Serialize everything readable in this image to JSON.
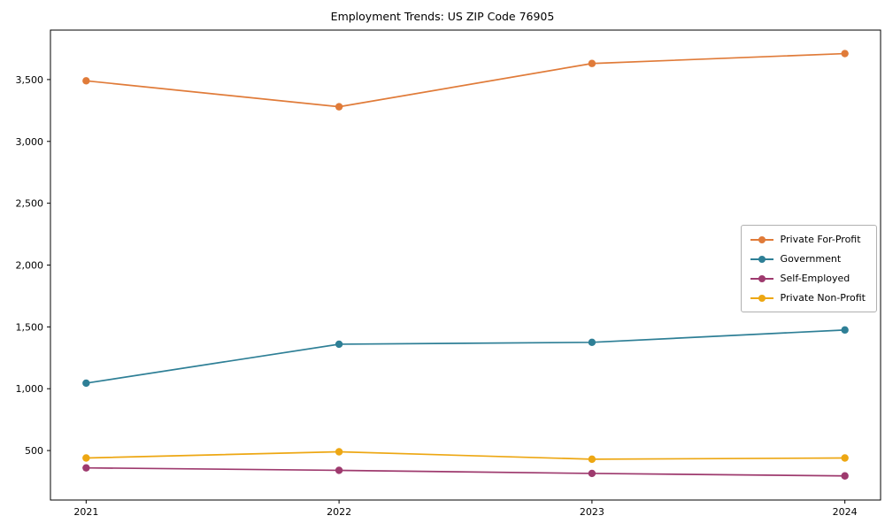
{
  "chart_data": {
    "type": "line",
    "title": "Employment Trends: US ZIP Code 76905",
    "categories": [
      "2021",
      "2022",
      "2023",
      "2024"
    ],
    "series": [
      {
        "name": "Private For-Profit",
        "color": "#e07b39",
        "values": [
          3490,
          3280,
          3630,
          3710
        ]
      },
      {
        "name": "Government",
        "color": "#2e7f96",
        "values": [
          1045,
          1360,
          1375,
          1475
        ]
      },
      {
        "name": "Self-Employed",
        "color": "#9e3a6e",
        "values": [
          360,
          340,
          315,
          295
        ]
      },
      {
        "name": "Private Non-Profit",
        "color": "#eda713",
        "values": [
          440,
          490,
          430,
          440
        ]
      }
    ],
    "xlabel": "",
    "ylabel": "",
    "ylim": [
      100,
      3900
    ],
    "yticks": [
      500,
      1000,
      1500,
      2000,
      2500,
      3000,
      3500
    ],
    "grid": false,
    "legend_position": "center-right",
    "axis_color": "#000000",
    "marker": "circle",
    "marker_radius": 4.2,
    "line_width": 1.7
  }
}
